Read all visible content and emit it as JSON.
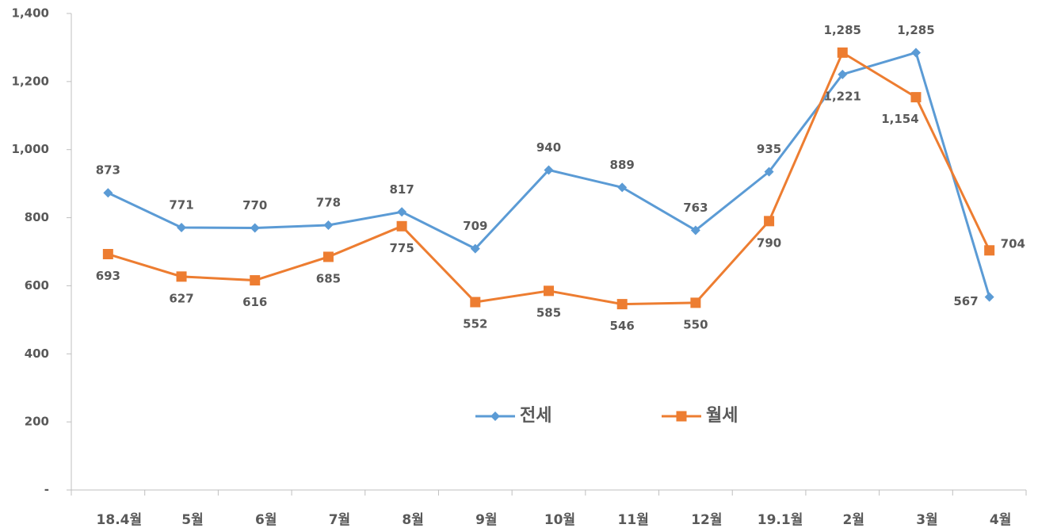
{
  "chart_data": {
    "type": "line",
    "categories": [
      "18.4월",
      "5월",
      "6월",
      "7월",
      "8월",
      "9월",
      "10월",
      "11월",
      "12월",
      "19.1월",
      "2월",
      "3월",
      "4월"
    ],
    "series": [
      {
        "name": "전세",
        "color": "#5b9bd5",
        "marker": "diamond",
        "values": [
          873,
          771,
          770,
          778,
          817,
          709,
          940,
          889,
          763,
          935,
          1221,
          1285,
          567
        ],
        "value_labels": [
          "873",
          "771",
          "770",
          "778",
          "817",
          "709",
          "940",
          "889",
          "763",
          "935",
          "1,221",
          "1,285",
          "567"
        ]
      },
      {
        "name": "월세",
        "color": "#ed7d31",
        "marker": "square",
        "values": [
          693,
          627,
          616,
          685,
          775,
          552,
          585,
          546,
          550,
          790,
          1285,
          1154,
          704
        ],
        "value_labels": [
          "693",
          "627",
          "616",
          "685",
          "775",
          "552",
          "585",
          "546",
          "550",
          "790",
          "1,285",
          "1,154",
          "704"
        ]
      }
    ],
    "ylim": [
      0,
      1400
    ],
    "yticks": [
      {
        "value": 0,
        "label": "-"
      },
      200,
      400,
      600,
      800,
      {
        "value": 1000,
        "label": "1,000"
      },
      {
        "value": 1200,
        "label": "1,200"
      },
      {
        "value": 1400,
        "label": "1,400"
      }
    ],
    "grid": false,
    "legend": "center"
  }
}
